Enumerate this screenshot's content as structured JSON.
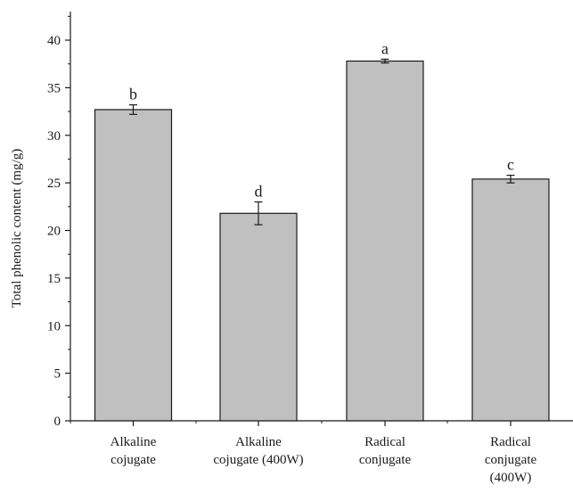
{
  "chart_data": {
    "type": "bar",
    "categories": [
      [
        "Alkaline",
        "cojugate"
      ],
      [
        "Alkaline",
        "cojugate (400W)"
      ],
      [
        "Radical",
        "conjugate"
      ],
      [
        "Radical",
        "conjugate",
        "(400W)"
      ]
    ],
    "values": [
      32.7,
      21.8,
      37.8,
      25.4
    ],
    "errors": [
      0.5,
      1.2,
      0.2,
      0.4
    ],
    "significance_labels": [
      "b",
      "d",
      "a",
      "c"
    ],
    "ylabel": "Total phenolic content (mg/g)",
    "xlabel": "",
    "ylim": [
      0,
      43
    ],
    "yticks": [
      0,
      5,
      10,
      15,
      20,
      25,
      30,
      35,
      40
    ],
    "grid": false,
    "colors": {
      "bar_fill": "#c0c0c0",
      "bar_stroke": "#1a1a1a",
      "axis": "#1a1a1a"
    }
  }
}
